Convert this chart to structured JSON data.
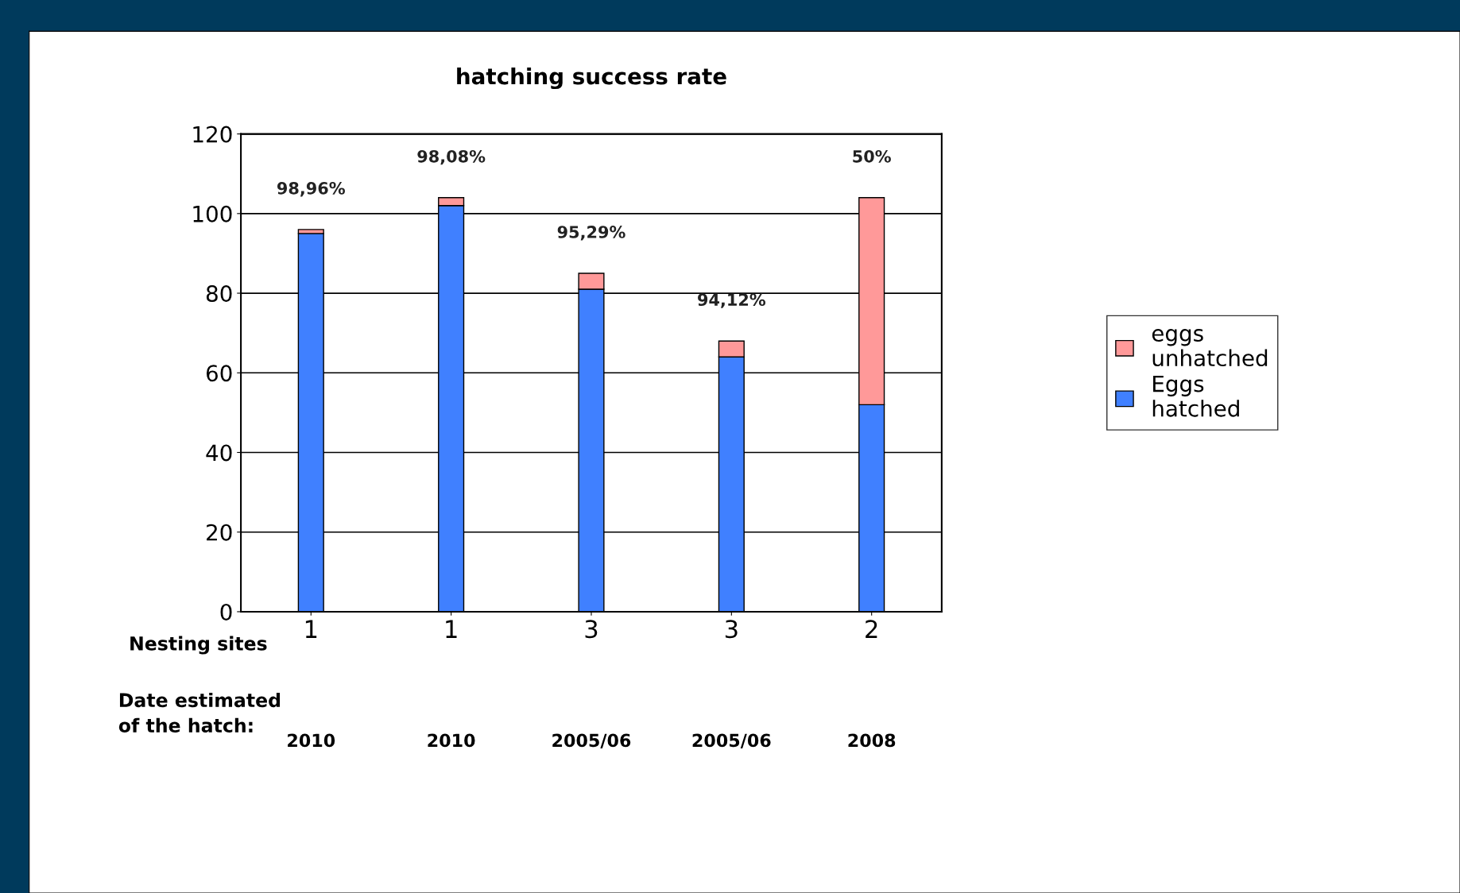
{
  "chart_data": {
    "type": "bar",
    "title": "hatching success rate",
    "xlabel": "Nesting sites",
    "categories": [
      "1",
      "1",
      "3",
      "3",
      "2"
    ],
    "series": [
      {
        "name": "Eggs\nhatched",
        "color": "#4080ff",
        "values": [
          95,
          102,
          81,
          64,
          52
        ]
      },
      {
        "name": "eggs\nunhatched",
        "color": "#ff9999",
        "values": [
          1,
          2,
          4,
          4,
          52
        ]
      }
    ],
    "stacked": true,
    "ylim": [
      0,
      120
    ],
    "yticks": [
      0,
      20,
      40,
      60,
      80,
      100,
      120
    ],
    "grid": "y",
    "legend": "right",
    "annotations": [
      "Date estimated\nof the hatch:",
      "2010",
      "2010",
      "2005/06",
      "2005/06",
      "2008",
      "98,96%",
      "98,08%",
      "95,29%",
      "94,12%",
      "50%"
    ]
  }
}
